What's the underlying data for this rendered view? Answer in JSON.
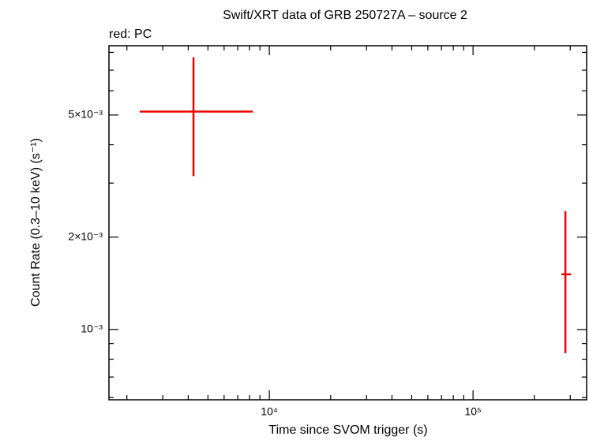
{
  "chart_data": {
    "type": "errorbar",
    "title": "Swift/XRT data of GRB 250727A – source 2",
    "subtitle": "red: PC",
    "xlabel": "Time since SVOM trigger (s)",
    "ylabel": "Count Rate (0.3–10 keV) (s⁻¹)",
    "xscale": "log",
    "yscale": "log",
    "xlim": [
      1633,
      361000
    ],
    "ylim": [
      0.00059,
      0.00841
    ],
    "xticks": [
      {
        "value": 10000,
        "label": "10⁴"
      },
      {
        "value": 100000,
        "label": "10⁵"
      }
    ],
    "yticks": [
      {
        "value": 0.001,
        "label": "10⁻³"
      },
      {
        "value": 0.002,
        "label": "2×10⁻³"
      },
      {
        "value": 0.005,
        "label": "5×10⁻³"
      }
    ],
    "xminorticks": [
      2000,
      3000,
      4000,
      5000,
      6000,
      7000,
      8000,
      9000,
      20000,
      30000,
      40000,
      50000,
      60000,
      70000,
      80000,
      90000,
      200000,
      300000
    ],
    "yminorticks": [
      0.0006,
      0.0007,
      0.0008,
      0.0009,
      0.003,
      0.004,
      0.006,
      0.007,
      0.008
    ],
    "series": [
      {
        "name": "PC",
        "color": "#ee0000",
        "x": [
          4245,
          284000
        ],
        "x_low": [
          2312,
          271600
        ],
        "x_high": [
          8300,
          302700
        ],
        "y": [
          0.00513,
          0.001513
        ],
        "y_low": [
          0.00316,
          0.000837
        ],
        "y_high": [
          0.00771,
          0.00243
        ]
      }
    ]
  }
}
